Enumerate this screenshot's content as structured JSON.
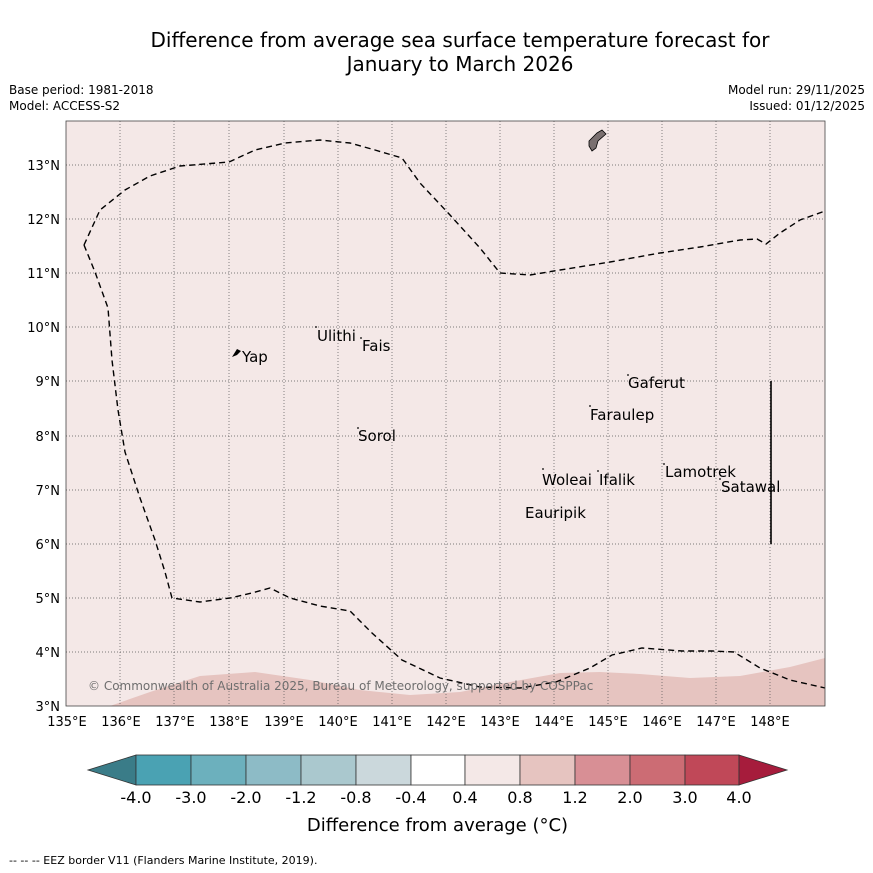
{
  "title": {
    "line1": "Difference from average sea surface temperature forecast for",
    "line2": "January to March 2026"
  },
  "meta": {
    "base_period": "Base period: 1981-2018",
    "model": "Model: ACCESS-S2",
    "model_run": "Model run: 29/11/2025",
    "issued": "Issued: 01/12/2025"
  },
  "map": {
    "lon_ticks": [
      "135°E",
      "136°E",
      "137°E",
      "138°E",
      "139°E",
      "140°E",
      "141°E",
      "142°E",
      "143°E",
      "144°E",
      "145°E",
      "146°E",
      "147°E",
      "148°E"
    ],
    "lat_ticks": [
      "3°N",
      "4°N",
      "5°N",
      "6°N",
      "7°N",
      "8°N",
      "9°N",
      "10°N",
      "11°N",
      "12°N",
      "13°N"
    ],
    "places": [
      "Yap",
      "Ulithi",
      "Fais",
      "Sorol",
      "Gaferut",
      "Faraulep",
      "Lamotrek",
      "Woleai",
      "Ifalik",
      "Satawal",
      "Eauripik"
    ],
    "copyright": "© Commonwealth of Australia 2025, Bureau of Meteorology, supported by COSPPac",
    "background_color": "#f4e8e7",
    "warm_band_color": "#e6c4c0"
  },
  "colorbar": {
    "labels": [
      "-4.0",
      "-3.0",
      "-2.0",
      "-1.2",
      "-0.8",
      "-0.4",
      "0.4",
      "0.8",
      "1.2",
      "2.0",
      "3.0",
      "4.0"
    ],
    "colors": [
      "#3a7c88",
      "#4aa2b3",
      "#6cb0bd",
      "#8dbbc6",
      "#aac8ce",
      "#cbd8dc",
      "#ffffff",
      "#f4e8e7",
      "#e6c4c0",
      "#d88f95",
      "#cc6c74",
      "#c04858",
      "#a61c3c"
    ],
    "title": "Difference from average (°C)"
  },
  "footnote": "--  --  -- EEZ border V11 (Flanders Marine Institute, 2019)."
}
